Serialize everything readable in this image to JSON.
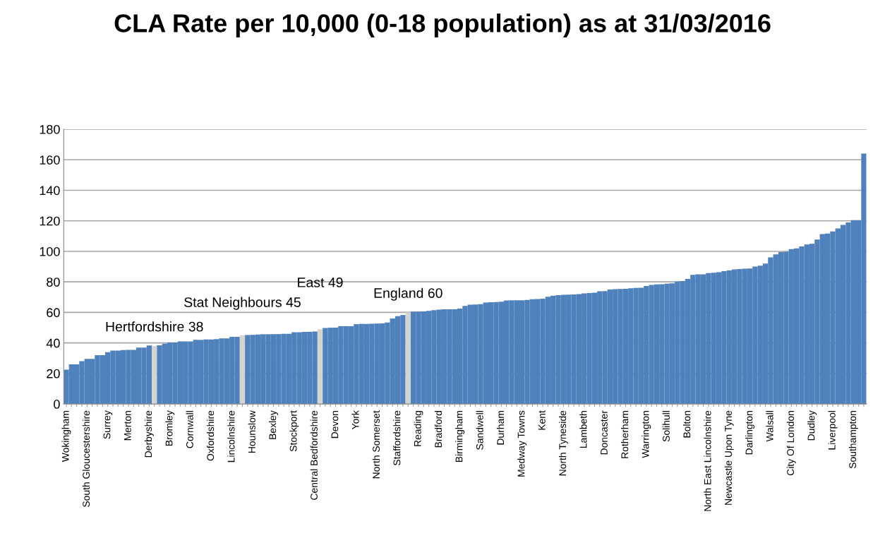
{
  "chart_data": {
    "type": "bar",
    "title": "CLA Rate per 10,000 (0-18 population) as at 31/03/2016",
    "categories": [
      "Wokingham",
      null,
      null,
      null,
      "South Gloucestershire",
      null,
      null,
      null,
      "Surrey",
      null,
      null,
      null,
      "Merton",
      null,
      null,
      null,
      "Derbyshire",
      null,
      null,
      null,
      "Bromley",
      null,
      null,
      null,
      "Cornwall",
      null,
      null,
      null,
      "Oxfordshire",
      null,
      null,
      null,
      "Lincolnshire",
      null,
      null,
      null,
      "Hounslow",
      null,
      null,
      null,
      "Bexley",
      null,
      null,
      null,
      "Stockport",
      null,
      null,
      null,
      "Central Bedfordshire",
      null,
      null,
      null,
      "Devon",
      null,
      null,
      null,
      "York",
      null,
      null,
      null,
      "North Somerset",
      null,
      null,
      null,
      "Staffordshire",
      null,
      null,
      null,
      "Reading",
      null,
      null,
      null,
      "Bradford",
      null,
      null,
      null,
      "Birmingham",
      null,
      null,
      null,
      "Sandwell",
      null,
      null,
      null,
      "Durham",
      null,
      null,
      null,
      "Medway Towns",
      null,
      null,
      null,
      "Kent",
      null,
      null,
      null,
      "North Tyneside",
      null,
      null,
      null,
      "Lambeth",
      null,
      null,
      null,
      "Doncaster",
      null,
      null,
      null,
      "Rotherham",
      null,
      null,
      null,
      "Warrington",
      null,
      null,
      null,
      "Solihull",
      null,
      null,
      null,
      "Bolton",
      null,
      null,
      null,
      "North East Lincolnshire",
      null,
      null,
      null,
      "Newcastle Upon Tyne",
      null,
      null,
      null,
      "Darlington",
      null,
      null,
      null,
      "Walsall",
      null,
      null,
      null,
      "City Of London",
      null,
      null,
      null,
      "Dudley",
      null,
      null,
      null,
      "Liverpool",
      null,
      null,
      null,
      "Southampton",
      null,
      null
    ],
    "values": [
      22.5,
      26,
      26,
      28,
      29.5,
      29.5,
      32,
      32,
      34,
      35,
      35,
      35.3,
      35.5,
      35.5,
      37,
      37,
      38.3,
      38,
      38.5,
      39.5,
      40.3,
      40.3,
      41,
      41,
      41,
      42,
      42,
      42.3,
      42.3,
      42.5,
      43,
      43,
      44,
      44,
      45,
      45.2,
      45.3,
      45.5,
      45.7,
      45.7,
      45.8,
      45.8,
      46,
      46,
      47,
      47,
      47.2,
      47.3,
      47.5,
      49,
      49.8,
      50,
      50,
      51,
      51,
      51,
      52.3,
      52.5,
      52.5,
      52.6,
      52.7,
      52.8,
      53.4,
      56,
      57.5,
      58.3,
      60,
      60.5,
      60.6,
      60.7,
      61,
      61.5,
      61.8,
      62,
      62,
      62.1,
      62.5,
      64.2,
      65,
      65.2,
      65.4,
      66.5,
      66.7,
      66.8,
      67,
      67.8,
      68,
      68,
      68,
      68.2,
      68.6,
      68.8,
      69,
      70.3,
      71,
      71.3,
      71.5,
      71.6,
      71.8,
      72,
      72.5,
      72.7,
      72.9,
      73.8,
      74,
      75,
      75.2,
      75.4,
      75.5,
      75.8,
      76,
      76.2,
      77.3,
      78,
      78.3,
      78.5,
      78.8,
      79,
      80.2,
      80.6,
      81.9,
      84.6,
      85,
      85,
      85.8,
      86,
      86.3,
      87,
      87.5,
      88.2,
      88.4,
      88.6,
      88.8,
      90,
      90.6,
      92,
      96,
      98,
      99.5,
      99.7,
      101.5,
      102,
      103.2,
      104.5,
      105,
      107.7,
      111.3,
      111.7,
      113,
      115,
      117.3,
      119,
      120.5,
      120.5,
      164
    ],
    "colors": [
      "#4f81bd",
      "#4f81bd",
      "#4f81bd",
      "#4f81bd",
      "#4f81bd",
      "#4f81bd",
      "#4f81bd",
      "#4f81bd",
      "#4f81bd",
      "#4f81bd",
      "#4f81bd",
      "#4f81bd",
      "#4f81bd",
      "#4f81bd",
      "#4f81bd",
      "#4f81bd",
      "#4f81bd",
      "#d4d4d0",
      "#4f81bd",
      "#4f81bd",
      "#4f81bd",
      "#4f81bd",
      "#4f81bd",
      "#4f81bd",
      "#4f81bd",
      "#4f81bd",
      "#4f81bd",
      "#4f81bd",
      "#4f81bd",
      "#4f81bd",
      "#4f81bd",
      "#4f81bd",
      "#4f81bd",
      "#4f81bd",
      "#d4d4d0",
      "#4f81bd",
      "#4f81bd",
      "#4f81bd",
      "#4f81bd",
      "#4f81bd",
      "#4f81bd",
      "#4f81bd",
      "#4f81bd",
      "#4f81bd",
      "#4f81bd",
      "#4f81bd",
      "#4f81bd",
      "#4f81bd",
      "#4f81bd",
      "#d4d4d0",
      "#4f81bd",
      "#4f81bd",
      "#4f81bd",
      "#4f81bd",
      "#4f81bd",
      "#4f81bd",
      "#4f81bd",
      "#4f81bd",
      "#4f81bd",
      "#4f81bd",
      "#4f81bd",
      "#4f81bd",
      "#4f81bd",
      "#4f81bd",
      "#4f81bd",
      "#4f81bd",
      "#d4d4d0",
      "#4f81bd",
      "#4f81bd",
      "#4f81bd",
      "#4f81bd",
      "#4f81bd",
      "#4f81bd",
      "#4f81bd",
      "#4f81bd",
      "#4f81bd",
      "#4f81bd",
      "#4f81bd",
      "#4f81bd",
      "#4f81bd",
      "#4f81bd",
      "#4f81bd",
      "#4f81bd",
      "#4f81bd",
      "#4f81bd",
      "#4f81bd",
      "#4f81bd",
      "#4f81bd",
      "#4f81bd",
      "#4f81bd",
      "#4f81bd",
      "#4f81bd",
      "#4f81bd",
      "#4f81bd",
      "#4f81bd",
      "#4f81bd",
      "#4f81bd",
      "#4f81bd",
      "#4f81bd",
      "#4f81bd",
      "#4f81bd",
      "#4f81bd",
      "#4f81bd",
      "#4f81bd",
      "#4f81bd",
      "#4f81bd",
      "#4f81bd",
      "#4f81bd",
      "#4f81bd",
      "#4f81bd",
      "#4f81bd",
      "#4f81bd",
      "#4f81bd",
      "#4f81bd",
      "#4f81bd",
      "#4f81bd",
      "#4f81bd",
      "#4f81bd",
      "#4f81bd",
      "#4f81bd",
      "#4f81bd",
      "#4f81bd",
      "#4f81bd",
      "#4f81bd",
      "#4f81bd",
      "#4f81bd",
      "#4f81bd",
      "#4f81bd",
      "#4f81bd",
      "#4f81bd",
      "#4f81bd",
      "#4f81bd",
      "#4f81bd",
      "#4f81bd",
      "#4f81bd",
      "#4f81bd",
      "#4f81bd",
      "#4f81bd",
      "#4f81bd",
      "#4f81bd",
      "#4f81bd",
      "#4f81bd",
      "#4f81bd",
      "#4f81bd",
      "#4f81bd",
      "#4f81bd",
      "#4f81bd",
      "#4f81bd",
      "#4f81bd",
      "#4f81bd",
      "#4f81bd",
      "#4f81bd",
      "#4f81bd",
      "#4f81bd",
      "#4f81bd"
    ],
    "annotations": [
      "Hertfordshire 38",
      "Stat Neighbours 45",
      "East 49",
      "England 60"
    ],
    "ylim": [
      0,
      180
    ],
    "yticks": [
      0,
      20,
      40,
      60,
      80,
      100,
      120,
      140,
      160,
      180
    ],
    "grid": "y"
  }
}
